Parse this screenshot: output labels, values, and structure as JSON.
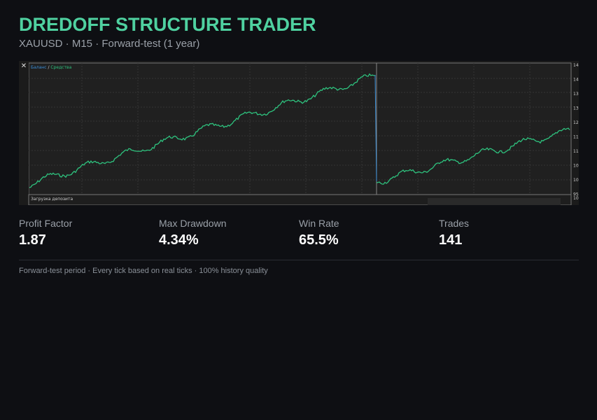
{
  "header": {
    "title": "DREDOFF STRUCTURE TRADER",
    "subtitle": "XAUUSD · M15 · Forward-test (1 year)"
  },
  "screenshot": {
    "legend_balance": "Баланс",
    "legend_separator": "/",
    "legend_equity": "Средства",
    "deposit_label": "Загрузка депозита",
    "axis_labels": [
      "14",
      "14",
      "13",
      "13",
      "12",
      "11",
      "11",
      "10",
      "10",
      "95",
      "10"
    ]
  },
  "stats": [
    {
      "label": "Profit Factor",
      "value": "1.87"
    },
    {
      "label": "Max Drawdown",
      "value": "4.34%"
    },
    {
      "label": "Win Rate",
      "value": "65.5%"
    },
    {
      "label": "Trades",
      "value": "141"
    }
  ],
  "footer": "Forward-test period · Every tick based on real ticks · 100% history quality"
}
